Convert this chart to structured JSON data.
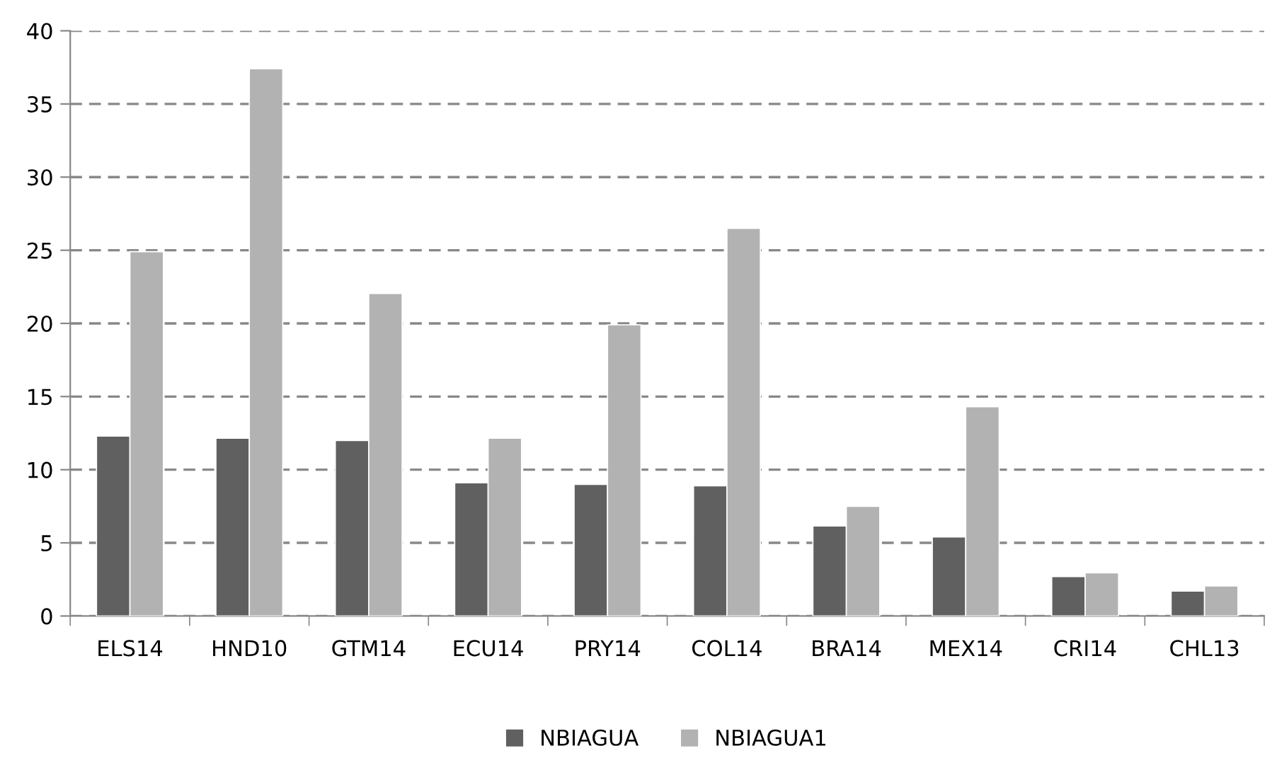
{
  "chart_data": {
    "type": "bar",
    "categories": [
      "ELS14",
      "HND10",
      "GTM14",
      "ECU14",
      "PRY14",
      "COL14",
      "BRA14",
      "MEX14",
      "CRI14",
      "CHL13"
    ],
    "series": [
      {
        "name": "NBIAGUA",
        "color": "#606060",
        "values": [
          12.3,
          12.15,
          12.0,
          9.1,
          9.0,
          8.9,
          6.15,
          5.4,
          2.7,
          1.7
        ]
      },
      {
        "name": "NBIAGUA1",
        "color": "#b2b2b2",
        "values": [
          24.9,
          37.4,
          22.05,
          12.15,
          19.9,
          26.5,
          7.5,
          14.3,
          2.95,
          2.05
        ]
      }
    ],
    "ylim": [
      0,
      40
    ],
    "yticks": [
      0,
      5,
      10,
      15,
      20,
      25,
      30,
      35,
      40
    ],
    "grid": "y",
    "legend": "bottom"
  }
}
